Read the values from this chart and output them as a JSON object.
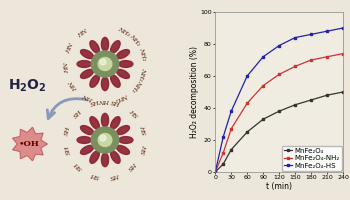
{
  "xlabel": "t (min)",
  "ylabel": "H₂O₂ decomposition (%)",
  "xlim": [
    0,
    240
  ],
  "ylim": [
    0,
    100
  ],
  "xticks": [
    0,
    30,
    60,
    90,
    120,
    150,
    180,
    210,
    240
  ],
  "yticks": [
    0,
    20,
    40,
    60,
    80,
    100
  ],
  "series": [
    {
      "label": "MnFe₂O₄",
      "color": "#333333",
      "marker": "s",
      "x": [
        0,
        15,
        30,
        60,
        90,
        120,
        150,
        180,
        210,
        240
      ],
      "y": [
        0,
        5,
        14,
        25,
        33,
        38,
        42,
        45,
        48,
        50
      ]
    },
    {
      "label": "MnFe₂O₄-NH₂",
      "color": "#cc3333",
      "marker": "s",
      "x": [
        0,
        15,
        30,
        60,
        90,
        120,
        150,
        180,
        210,
        240
      ],
      "y": [
        0,
        12,
        27,
        43,
        54,
        61,
        66,
        70,
        72,
        74
      ]
    },
    {
      "label": "MnFe₂O₄-HS",
      "color": "#2222aa",
      "marker": "s",
      "x": [
        0,
        15,
        30,
        60,
        90,
        120,
        150,
        180,
        210,
        240
      ],
      "y": [
        0,
        22,
        38,
        60,
        72,
        79,
        84,
        86,
        88,
        90
      ]
    }
  ],
  "bg_color": "#ece7da",
  "plot_bg_color": "#f0ece2",
  "petal_color": "#8b2030",
  "core_outer_color": "#7a9060",
  "core_inner_color": "#c8d8a0",
  "label_color": "#5a2510",
  "h2o2_color": "#222244",
  "arrow_color": "#8899bb",
  "oh_fill": "#d98080",
  "oh_text_color": "#660000",
  "legend_fontsize": 5.0,
  "axis_fontsize": 5.5,
  "tick_fontsize": 4.5,
  "h2o2_fontsize": 10,
  "oh_fontsize": 6,
  "petal_label_fontsize": 4.5
}
